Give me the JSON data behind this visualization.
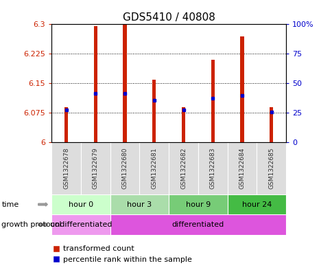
{
  "title": "GDS5410 / 40808",
  "samples": [
    "GSM1322678",
    "GSM1322679",
    "GSM1322680",
    "GSM1322681",
    "GSM1322682",
    "GSM1322683",
    "GSM1322684",
    "GSM1322685"
  ],
  "red_top": [
    6.09,
    6.295,
    6.3,
    6.16,
    6.09,
    6.21,
    6.27,
    6.09
  ],
  "red_bottom": [
    6.0,
    6.0,
    6.0,
    6.0,
    6.0,
    6.0,
    6.0,
    6.0
  ],
  "blue_y": [
    6.082,
    6.124,
    6.124,
    6.108,
    6.082,
    6.113,
    6.12,
    6.078
  ],
  "ylim_left": [
    6.0,
    6.3
  ],
  "ylim_right": [
    0,
    100
  ],
  "yticks_left": [
    6.0,
    6.075,
    6.15,
    6.225,
    6.3
  ],
  "ytick_labels_left": [
    "6",
    "6.075",
    "6.15",
    "6.225",
    "6.3"
  ],
  "yticks_right": [
    0,
    25,
    50,
    75,
    100
  ],
  "ytick_labels_right": [
    "0",
    "25",
    "50",
    "75",
    "100%"
  ],
  "bar_color": "#cc2200",
  "blue_color": "#0000cc",
  "bar_width": 0.12,
  "time_groups": [
    {
      "label": "hour 0",
      "cols": [
        0,
        1
      ],
      "color": "#ccffcc"
    },
    {
      "label": "hour 3",
      "cols": [
        2,
        3
      ],
      "color": "#99ee99"
    },
    {
      "label": "hour 9",
      "cols": [
        4,
        5
      ],
      "color": "#55cc55"
    },
    {
      "label": "hour 24",
      "cols": [
        6,
        7
      ],
      "color": "#33bb33"
    }
  ],
  "protocol_groups": [
    {
      "label": "undifferentiated",
      "cols": [
        0,
        1
      ],
      "color": "#ee88ee"
    },
    {
      "label": "differentiated",
      "cols": [
        2,
        7
      ],
      "color": "#dd55dd"
    }
  ],
  "time_label": "time",
  "protocol_label": "growth protocol",
  "legend_red": "transformed count",
  "legend_blue": "percentile rank within the sample",
  "label_color": "#888888",
  "title_fontsize": 11,
  "sample_bg_color": "#dddddd",
  "sample_fg_color": "#333333"
}
